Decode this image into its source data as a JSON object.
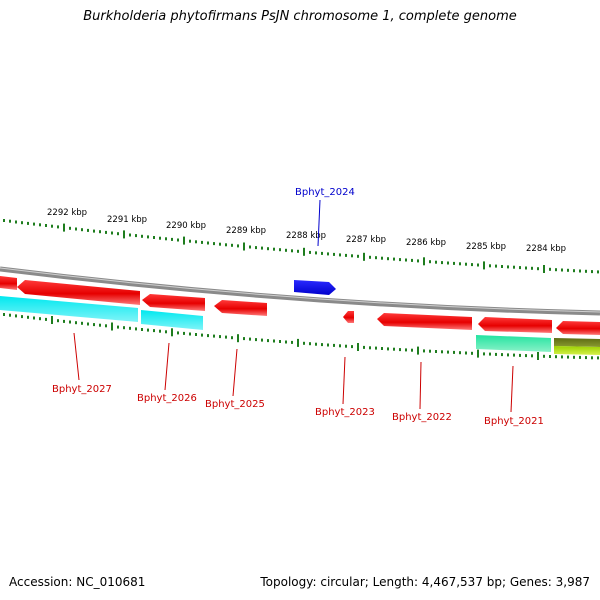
{
  "title": "Burkholderia phytofirmans PsJN chromosome 1, complete genome",
  "footer": {
    "accession": "Accession: NC_010681",
    "summary": "Topology: circular; Length: 4,467,537 bp; Genes: 3,987"
  },
  "colors": {
    "backbone": "#8a8a8a",
    "tick": "#1e7d1e",
    "forward_gene": "#0000ff",
    "reverse_gene": "#ff0000",
    "label_forward": "#0000cc",
    "label_reverse": "#cc0000"
  },
  "ruler": {
    "labels": [
      "2292 kbp",
      "2291 kbp",
      "2290 kbp",
      "2289 kbp",
      "2288 kbp",
      "2287 kbp",
      "2286 kbp",
      "2285 kbp",
      "2284 kbp"
    ]
  },
  "genes": [
    {
      "name": "Bphyt_2027",
      "strand": "reverse"
    },
    {
      "name": "Bphyt_2026",
      "strand": "reverse"
    },
    {
      "name": "Bphyt_2025",
      "strand": "reverse"
    },
    {
      "name": "Bphyt_2024",
      "strand": "forward"
    },
    {
      "name": "Bphyt_2023",
      "strand": "reverse"
    },
    {
      "name": "Bphyt_2022",
      "strand": "reverse"
    },
    {
      "name": "Bphyt_2021",
      "strand": "reverse"
    }
  ]
}
